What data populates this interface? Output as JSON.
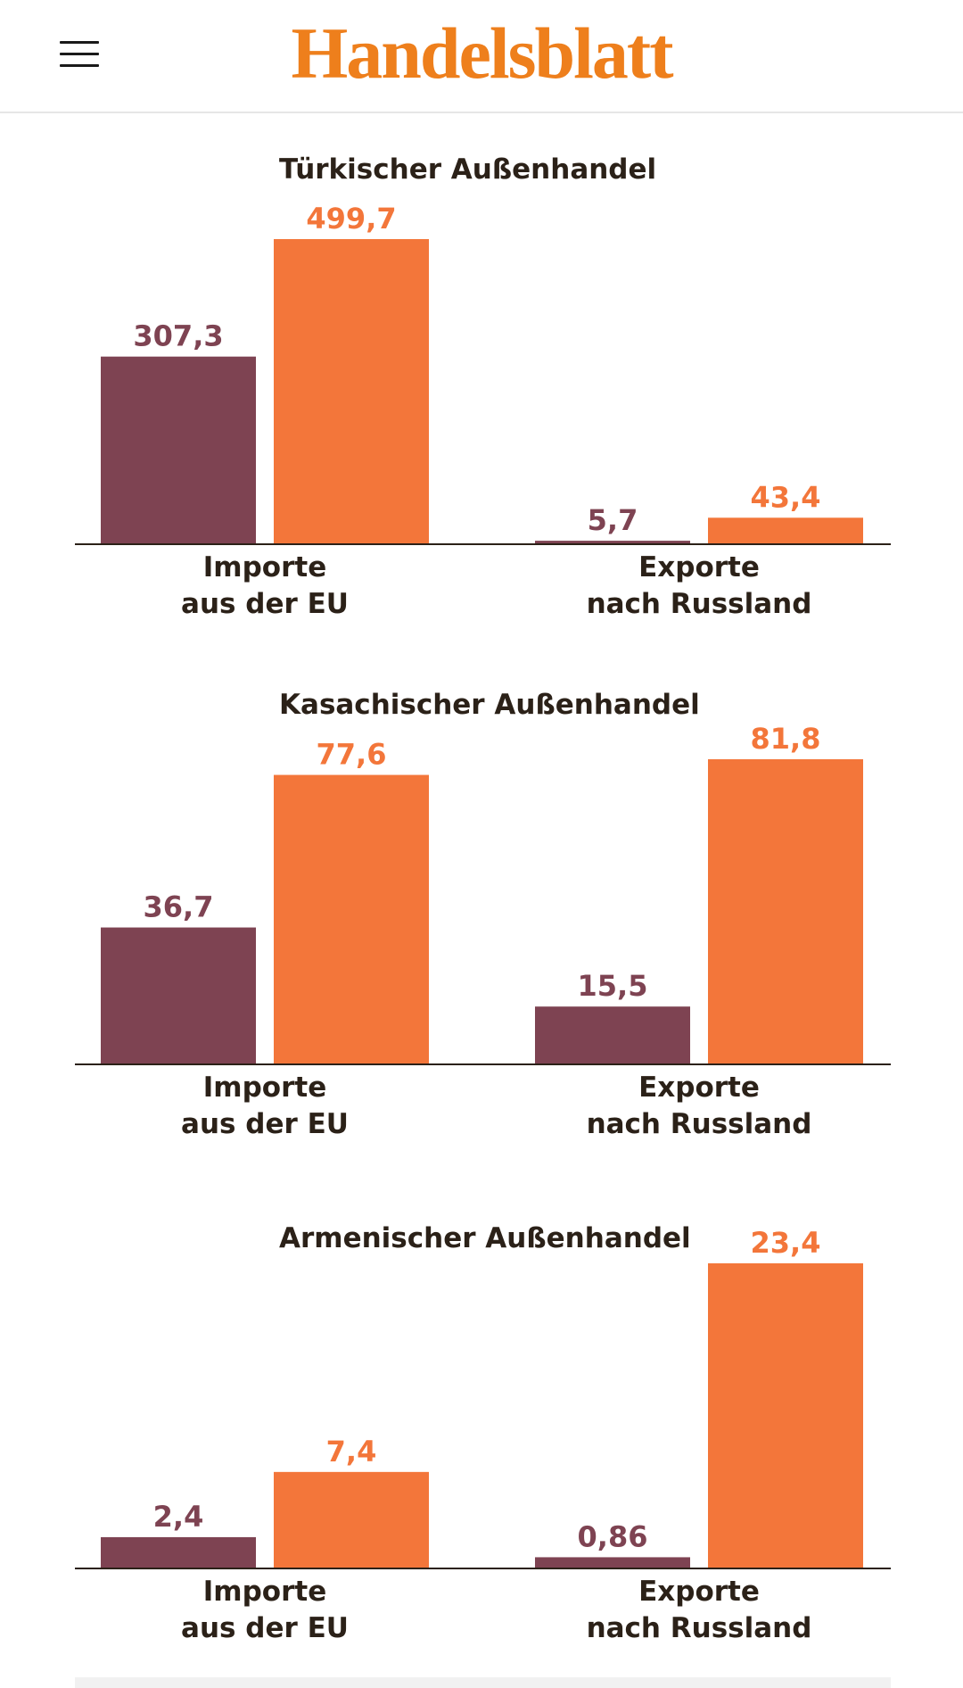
{
  "header": {
    "logo_text": "Handelsblatt"
  },
  "colors": {
    "series_1": "#7e4352",
    "series_2": "#f3763a",
    "axis": "#2b2118",
    "title": "#2b2118",
    "logo": "#ee7f1c"
  },
  "chart_data": [
    {
      "type": "bar",
      "title": "Türkischer Außenhandel",
      "categories": [
        "Importe\naus der EU",
        "Exporte\nnach Russland"
      ],
      "series": [
        {
          "values": [
            307.3,
            5.7
          ],
          "labels": [
            "307,3",
            "5,7"
          ],
          "color": "#7e4352"
        },
        {
          "values": [
            499.7,
            43.4
          ],
          "labels": [
            "499,7",
            "43,4"
          ],
          "color": "#f3763a"
        }
      ],
      "ylim": [
        0,
        499.7
      ]
    },
    {
      "type": "bar",
      "title": "Kasachischer Außenhandel",
      "categories": [
        "Importe\naus der EU",
        "Exporte\nnach Russland"
      ],
      "series": [
        {
          "values": [
            36.7,
            15.5
          ],
          "labels": [
            "36,7",
            "15,5"
          ],
          "color": "#7e4352"
        },
        {
          "values": [
            77.6,
            81.8
          ],
          "labels": [
            "77,6",
            "81,8"
          ],
          "color": "#f3763a"
        }
      ],
      "ylim": [
        0,
        81.8
      ]
    },
    {
      "type": "bar",
      "title": "Armenischer Außenhandel",
      "categories": [
        "Importe\naus der EU",
        "Exporte\nnach Russland"
      ],
      "series": [
        {
          "values": [
            2.4,
            0.86
          ],
          "labels": [
            "2,4",
            "0,86"
          ],
          "color": "#7e4352"
        },
        {
          "values": [
            7.4,
            23.4
          ],
          "labels": [
            "7,4",
            "23,4"
          ],
          "color": "#f3763a"
        }
      ],
      "ylim": [
        0,
        23.4
      ]
    }
  ]
}
